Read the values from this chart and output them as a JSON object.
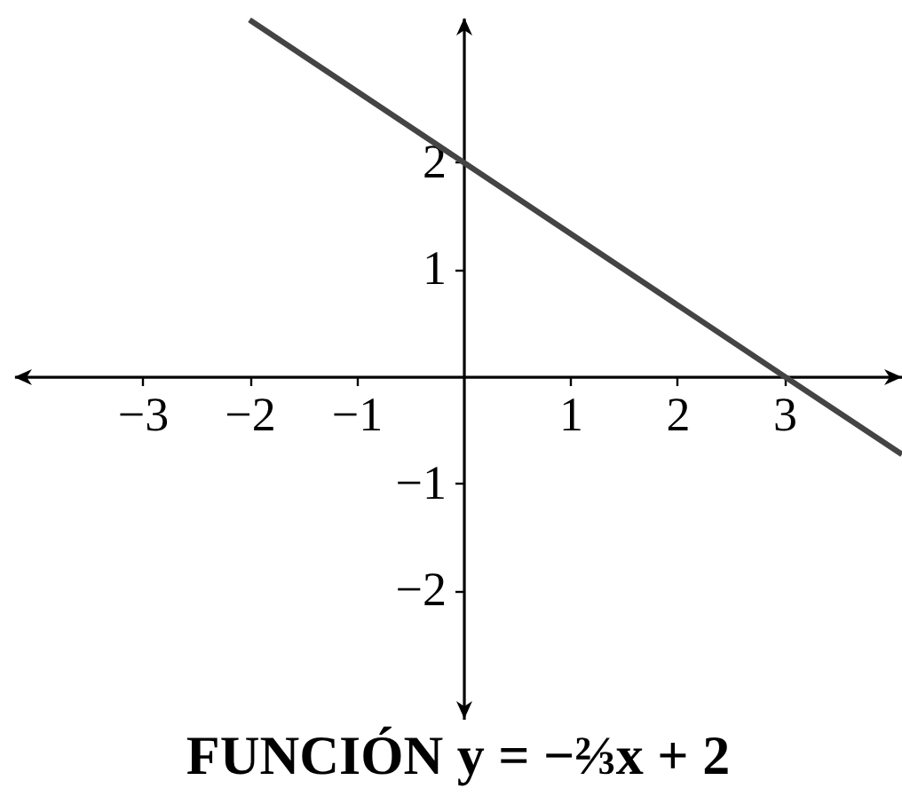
{
  "chart_data": {
    "type": "line",
    "title": "FUNCIÓN y = −⅔x + 2",
    "x": [
      -2,
      0,
      3,
      4.1
    ],
    "series": [
      {
        "color": "#444444",
        "values": [
          3.33,
          2,
          0,
          -0.73
        ]
      }
    ],
    "xlim": [
      -4.2,
      4.1
    ],
    "ylim": [
      -3.2,
      3.35
    ],
    "xticks": [
      -3,
      -2,
      -1,
      1,
      2,
      3
    ],
    "yticks": [
      -2,
      -1,
      1,
      2
    ],
    "grid": false,
    "marker": "none",
    "line_style": "solid"
  }
}
